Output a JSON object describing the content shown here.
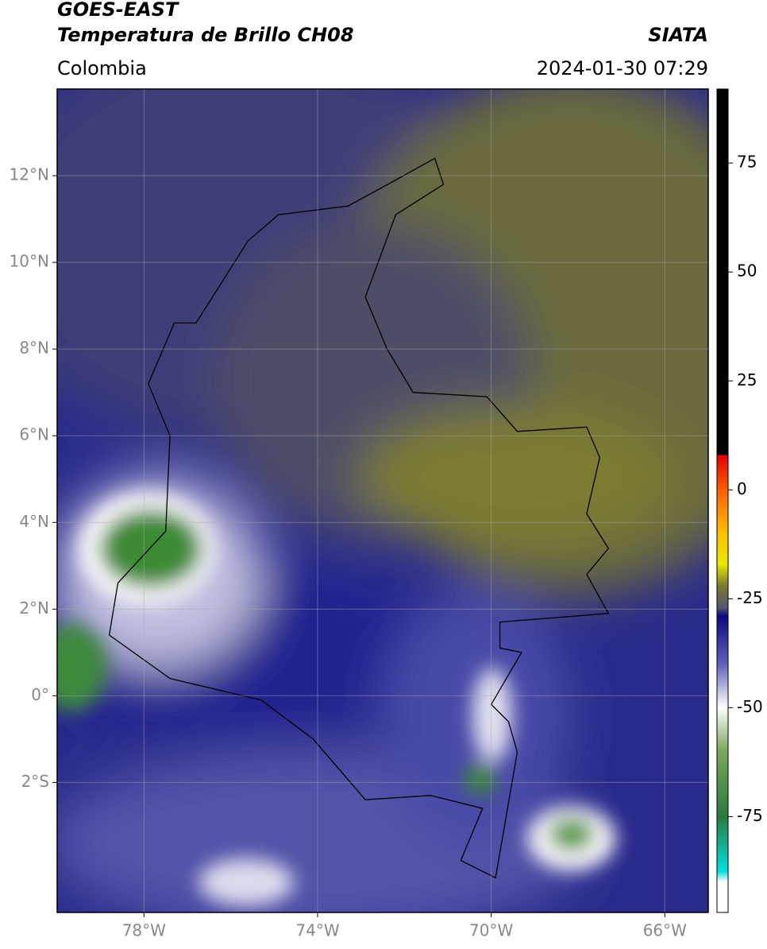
{
  "header": {
    "title": "GOES-EAST",
    "subtitle": "Temperatura de Brillo CH08",
    "region": "Colombia",
    "source": "SIATA",
    "datetime": "2024-01-30 07:29"
  },
  "map": {
    "xlim": [
      -80,
      -65
    ],
    "ylim": [
      -5,
      14
    ],
    "xticks": [
      {
        "value": -78,
        "label": "78°W"
      },
      {
        "value": -74,
        "label": "74°W"
      },
      {
        "value": -70,
        "label": "70°W"
      },
      {
        "value": -66,
        "label": "66°W"
      }
    ],
    "yticks": [
      {
        "value": 12,
        "label": "12°N"
      },
      {
        "value": 10,
        "label": "10°N"
      },
      {
        "value": 8,
        "label": "8°N"
      },
      {
        "value": 6,
        "label": "6°N"
      },
      {
        "value": 4,
        "label": "4°N"
      },
      {
        "value": 2,
        "label": "2°N"
      },
      {
        "value": 0,
        "label": "0°"
      },
      {
        "value": -2,
        "label": "2°S"
      }
    ],
    "grid": true
  },
  "colorbar": {
    "lim": [
      -97,
      92
    ],
    "ticks": [
      75,
      50,
      25,
      0,
      -25,
      -50,
      -75
    ]
  }
}
